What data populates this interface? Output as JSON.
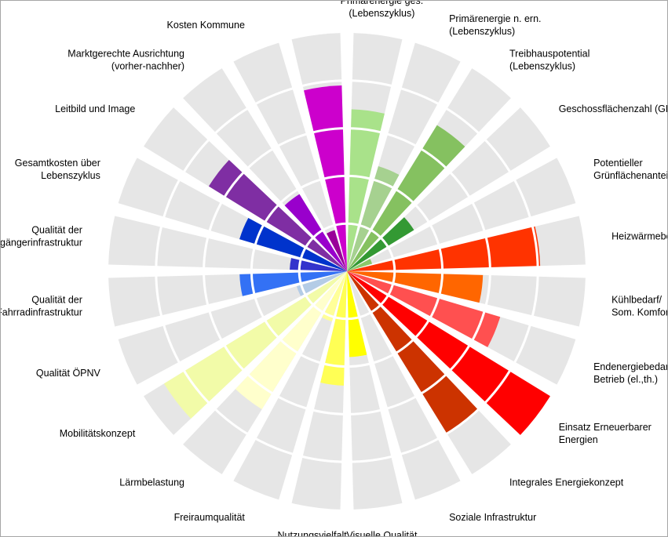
{
  "chart_data": {
    "type": "polar-bar",
    "title": "",
    "rlim": [
      0,
      5
    ],
    "ring_count": 5,
    "grid": true,
    "background_color": "#e6e6e6",
    "categories": [
      {
        "label": [
          "Primärenergie ges.",
          "(Lebenszyklus)"
        ],
        "value": 3.4,
        "color": "#a9e28a"
      },
      {
        "label": [
          "Primärenergie n. ern.",
          "(Lebenszyklus)"
        ],
        "value": 2.3,
        "color": "#a6d190"
      },
      {
        "label": [
          "Treibhauspotential",
          "(Lebenszyklus)"
        ],
        "value": 3.6,
        "color": "#85c160"
      },
      {
        "label": [
          "Geschossflächenzahl (GFZ)"
        ],
        "value": 1.65,
        "color": "#339933"
      },
      {
        "label": [
          "Potentieller",
          "Grünflächenanteil"
        ],
        "value": 0.55,
        "color": "#8dc96a"
      },
      {
        "label": [
          "Heizwärmebedarf"
        ],
        "value": 4.05,
        "color": "#ff3300"
      },
      {
        "label": [
          "Kühlbedarf/",
          "Som. Komfort"
        ],
        "value": 2.85,
        "color": "#ff6600"
      },
      {
        "label": [
          "Endenergiebedarf",
          "Betrieb (el.,th.)"
        ],
        "value": 3.35,
        "color": "#ff5050"
      },
      {
        "label": [
          "Einsatz Erneuerbarer",
          "Energien"
        ],
        "value": 5.0,
        "color": "#ff0000"
      },
      {
        "label": [
          "Integrales Energiekonzept"
        ],
        "value": 4.0,
        "color": "#cc3300"
      },
      {
        "label": [
          "Soziale Infrastruktur"
        ],
        "value": 0,
        "color": "#ffffff"
      },
      {
        "label": [
          "Visuelle Qualität"
        ],
        "value": 1.8,
        "color": "#ffff00"
      },
      {
        "label": [
          "Nutzungsvielfalt"
        ],
        "value": 2.4,
        "color": "#ffff55"
      },
      {
        "label": [
          "Freiraumqualität"
        ],
        "value": 1.1,
        "color": "#ffff99"
      },
      {
        "label": [
          "Lärmbelastung"
        ],
        "value": 3.4,
        "color": "#ffffcc"
      },
      {
        "label": [
          "Mobilitätskonzept"
        ],
        "value": 4.5,
        "color": "#f2fba8"
      },
      {
        "label": [
          "Qualität ÖPNV"
        ],
        "value": 1.1,
        "color": "#b4cce6"
      },
      {
        "label": [
          "Qualität der",
          "Fahrradinfrastruktur"
        ],
        "value": 2.25,
        "color": "#3371f5"
      },
      {
        "label": [
          "Qualität der",
          "Fußgängerinfrastruktur"
        ],
        "value": 1.2,
        "color": "#3333cc"
      },
      {
        "label": [
          "Gesamtkosten über",
          "Lebenszyklus"
        ],
        "value": 2.35,
        "color": "#0033cc"
      },
      {
        "label": [
          "Leitbild und Image"
        ],
        "value": 3.4,
        "color": "#7f2ea3"
      },
      {
        "label": [
          "Marktgerechte Ausrichtung",
          "(vorher-nachher)"
        ],
        "value": 1.9,
        "color": "#9900cc"
      },
      {
        "label": [
          "Kosten Kommune"
        ],
        "value": 0.9,
        "color": "#990099"
      },
      {
        "label": [
          ""
        ],
        "value": 3.9,
        "color": "#cc00cc"
      }
    ]
  }
}
